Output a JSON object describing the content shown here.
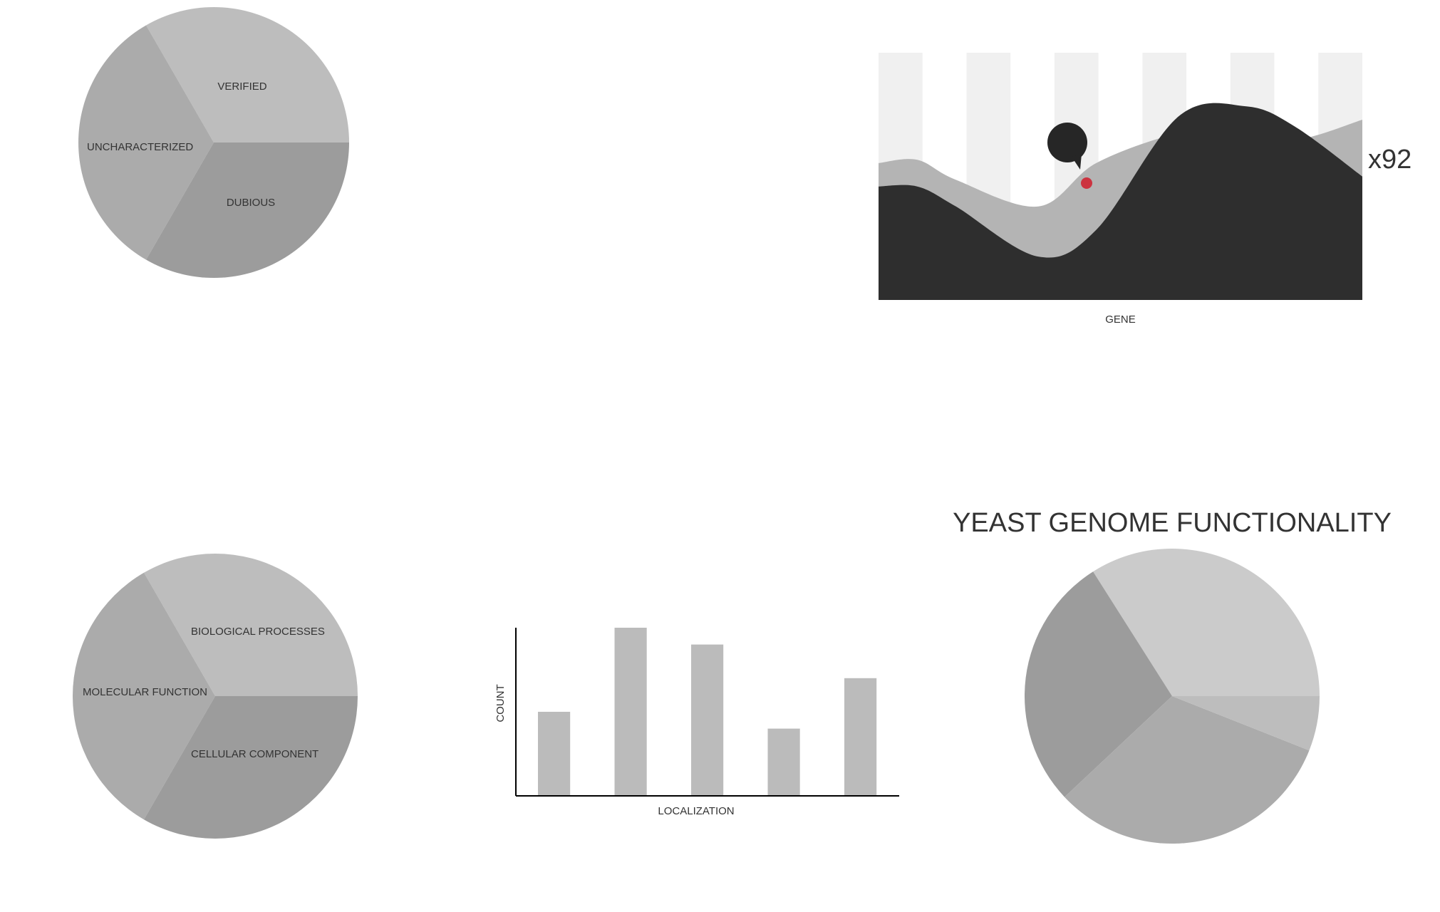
{
  "colors": {
    "slice_light": "#bdbdbd",
    "slice_mid": "#ababab",
    "slice_dark": "#9c9c9c",
    "slice_lighter": "#cbcbcb",
    "stripe": "#f0f0f0",
    "area_light": "#b4b4b4",
    "area_dark": "#2e2e2e",
    "marker": "#cc3340",
    "bubble": "#262626",
    "bar": "#bbbbbb",
    "axis": "#000000",
    "text": "#333333"
  },
  "annotation_text": "x92",
  "marker_icon": "speech-bubble-icon",
  "chart_data": [
    {
      "id": "gene-status-pie",
      "type": "pie",
      "title": "",
      "slices": [
        {
          "label": "VERIFIED",
          "value": 33.3
        },
        {
          "label": "UNCHARACTERIZED",
          "value": 33.3
        },
        {
          "label": "DUBIOUS",
          "value": 33.3
        }
      ]
    },
    {
      "id": "gene-area-chart",
      "type": "area",
      "title": "",
      "xlabel": "GENE",
      "ylabel": "",
      "xlim": [
        0,
        10
      ],
      "ylim": [
        0,
        10
      ],
      "series": [
        {
          "x": [
            0,
            0.8,
            1.6,
            3.3,
            4.5,
            6.2,
            7.6,
            8.6,
            10
          ],
          "values": [
            4.1,
            4.2,
            3.6,
            2.8,
            4.1,
            5.0,
            5.2,
            4.8,
            5.4
          ]
        },
        {
          "x": [
            0,
            0.8,
            1.6,
            3.3,
            4.5,
            6.2,
            7.6,
            8.6,
            10
          ],
          "values": [
            3.4,
            3.4,
            2.8,
            1.3,
            2.1,
            5.5,
            5.8,
            5.2,
            3.7
          ]
        }
      ],
      "highlight": {
        "x": 4.3,
        "y": 3.5
      }
    },
    {
      "id": "go-category-pie",
      "type": "pie",
      "title": "",
      "slices": [
        {
          "label": "BIOLOGICAL PROCESSES",
          "value": 33.3
        },
        {
          "label": "MOLECULAR FUNCTION",
          "value": 33.3
        },
        {
          "label": "CELLULAR COMPONENT",
          "value": 33.3
        }
      ]
    },
    {
      "id": "localization-bar",
      "type": "bar",
      "title": "",
      "xlabel": "LOCALIZATION",
      "ylabel": "COUNT",
      "ylim": [
        0,
        100
      ],
      "values": [
        50,
        100,
        90,
        40,
        70
      ]
    },
    {
      "id": "functionality-pie",
      "type": "pie",
      "title": "YEAST GENOME FUNCTIONALITY",
      "slices": [
        {
          "value": 34
        },
        {
          "value": 28
        },
        {
          "value": 32
        },
        {
          "value": 6
        }
      ]
    }
  ]
}
